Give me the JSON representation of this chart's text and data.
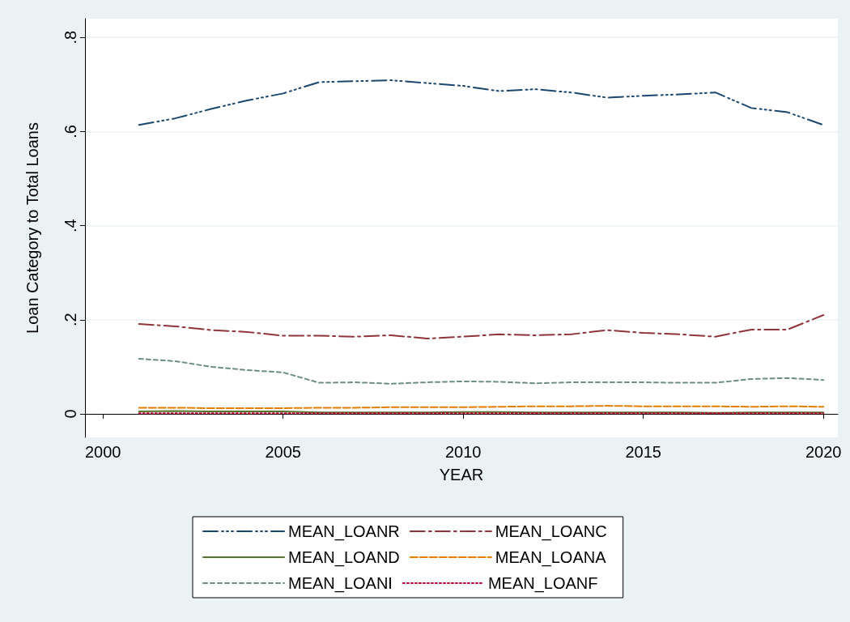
{
  "chart_data": {
    "type": "line",
    "xlabel": "YEAR",
    "ylabel": "Loan Category to Total Loans",
    "x": [
      2001,
      2002,
      2003,
      2004,
      2005,
      2006,
      2007,
      2008,
      2009,
      2010,
      2011,
      2012,
      2013,
      2014,
      2015,
      2016,
      2017,
      2018,
      2019,
      2020
    ],
    "xlim": [
      1999.5,
      2020.4
    ],
    "xticks": [
      2000,
      2005,
      2010,
      2015,
      2020
    ],
    "ylim": [
      -0.05,
      0.84
    ],
    "yticks": [
      {
        "value": 0,
        "label": "0"
      },
      {
        "value": 0.2,
        "label": ".2"
      },
      {
        "value": 0.4,
        "label": ".4"
      },
      {
        "value": 0.6,
        "label": ".6"
      },
      {
        "value": 0.8,
        "label": ".8"
      }
    ],
    "grid": "y",
    "legend": "bottom",
    "marker": "none",
    "series": [
      {
        "name": "MEAN_LOANR",
        "color": "#1a476f",
        "line_style": "dashed",
        "values": [
          0.614,
          0.628,
          0.648,
          0.666,
          0.681,
          0.705,
          0.707,
          0.709,
          0.703,
          0.697,
          0.686,
          0.69,
          0.683,
          0.672,
          0.676,
          0.679,
          0.683,
          0.65,
          0.641,
          0.614
        ]
      },
      {
        "name": "MEAN_LOANC",
        "color": "#90353b",
        "line_style": "dashed",
        "values": [
          0.191,
          0.186,
          0.178,
          0.174,
          0.166,
          0.166,
          0.164,
          0.167,
          0.16,
          0.164,
          0.169,
          0.167,
          0.169,
          0.178,
          0.172,
          0.169,
          0.164,
          0.179,
          0.179,
          0.21
        ]
      },
      {
        "name": "MEAN_LOAND",
        "color": "#55752f",
        "line_style": "solid",
        "values": [
          0.005,
          0.006,
          0.005,
          0.005,
          0.005,
          0.003,
          0.003,
          0.003,
          0.003,
          0.004,
          0.004,
          0.003,
          0.003,
          0.003,
          0.003,
          0.003,
          0.002,
          0.003,
          0.003,
          0.003
        ]
      },
      {
        "name": "MEAN_LOANA",
        "color": "#e37e00",
        "line_style": "dashed",
        "values": [
          0.013,
          0.013,
          0.012,
          0.012,
          0.012,
          0.013,
          0.013,
          0.014,
          0.014,
          0.014,
          0.015,
          0.016,
          0.016,
          0.017,
          0.016,
          0.016,
          0.016,
          0.015,
          0.016,
          0.015
        ]
      },
      {
        "name": "MEAN_LOANI",
        "color": "#6e8e84",
        "line_style": "dashed",
        "values": [
          0.117,
          0.112,
          0.1,
          0.093,
          0.088,
          0.066,
          0.067,
          0.064,
          0.067,
          0.069,
          0.068,
          0.065,
          0.067,
          0.067,
          0.067,
          0.066,
          0.066,
          0.074,
          0.076,
          0.072
        ]
      },
      {
        "name": "MEAN_LOANF",
        "color": "#c10534",
        "line_style": "dotted",
        "values": [
          0.001,
          0.001,
          0.001,
          0.001,
          0.001,
          0.001,
          0.001,
          0.001,
          0.001,
          0.001,
          0.001,
          0.001,
          0.001,
          0.001,
          0.001,
          0.001,
          0.001,
          0.001,
          0.001,
          0.001
        ]
      }
    ]
  }
}
